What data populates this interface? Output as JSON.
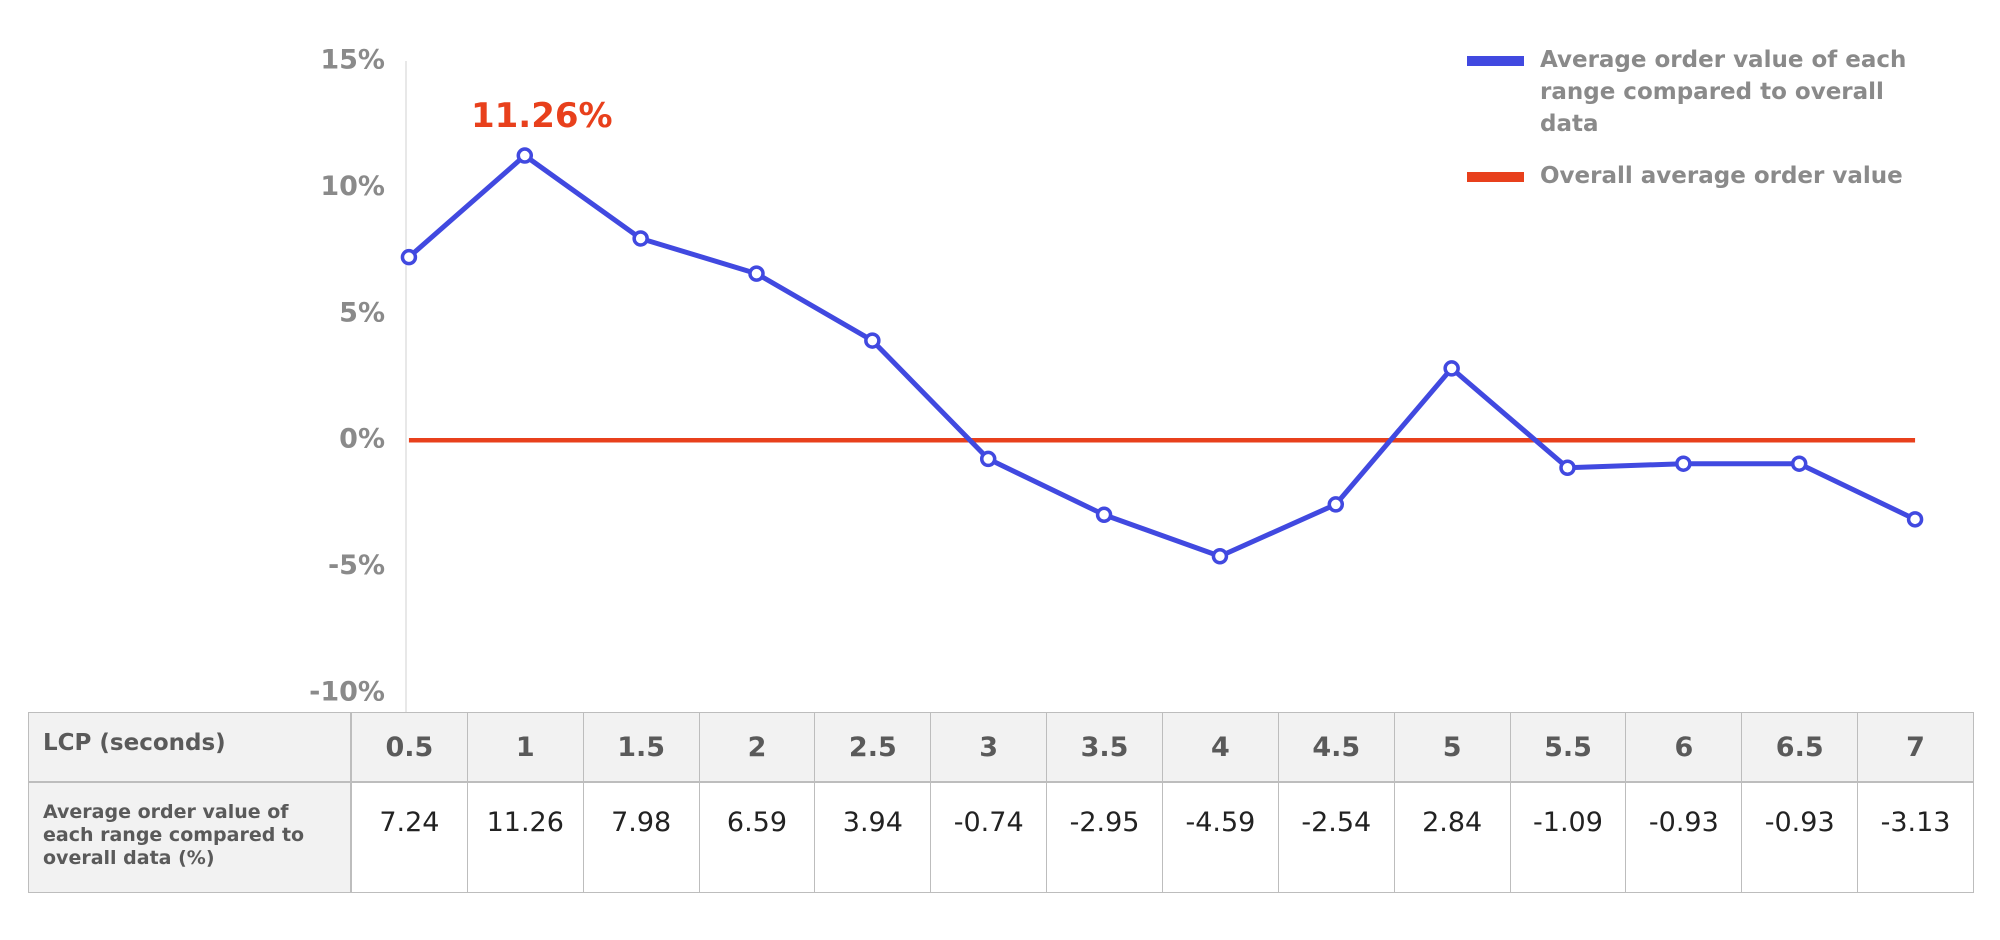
{
  "chart_data": {
    "type": "line",
    "annotation": "11.26%",
    "x_label": "LCP (seconds)",
    "table_row_label": "Average order value of each range compared to overall data (%)",
    "x": [
      0.5,
      1,
      1.5,
      2,
      2.5,
      3,
      3.5,
      4,
      4.5,
      5,
      5.5,
      6,
      6.5,
      7
    ],
    "series": [
      {
        "name": "Average order value of each range compared to overall data",
        "color": "#4149e0",
        "values": [
          7.24,
          11.26,
          7.98,
          6.59,
          3.94,
          -0.74,
          -2.95,
          -4.59,
          -2.54,
          2.84,
          -1.09,
          -0.93,
          -0.93,
          -3.13
        ]
      },
      {
        "name": "Overall average order value",
        "color": "#e8401c",
        "values": [
          0,
          0,
          0,
          0,
          0,
          0,
          0,
          0,
          0,
          0,
          0,
          0,
          0,
          0
        ]
      }
    ],
    "ylim": [
      -10,
      15
    ],
    "yticks": [
      {
        "value": -10,
        "label": "-10%"
      },
      {
        "value": -5,
        "label": "-5%"
      },
      {
        "value": 0,
        "label": "0%"
      },
      {
        "value": 5,
        "label": "5%"
      },
      {
        "value": 10,
        "label": "10%"
      },
      {
        "value": 15,
        "label": "15%"
      }
    ],
    "grid": false
  }
}
